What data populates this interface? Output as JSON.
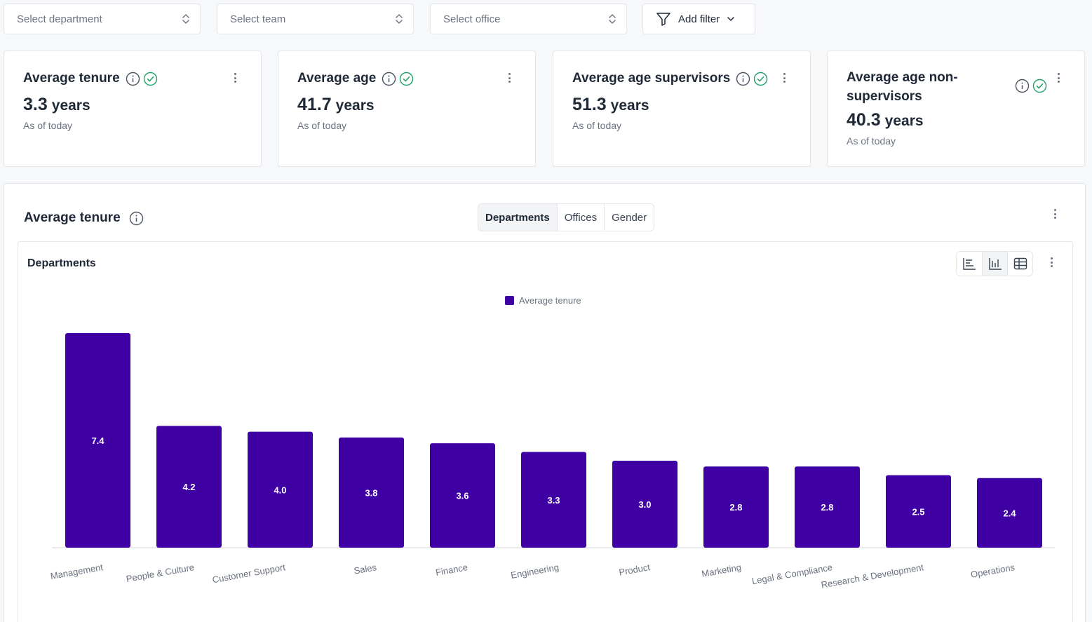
{
  "filters": {
    "department": "Select department",
    "team": "Select team",
    "office": "Select office",
    "add_filter": "Add filter"
  },
  "kpis": [
    {
      "title": "Average tenure",
      "value": "3.3",
      "unit": "years",
      "sub": "As of today"
    },
    {
      "title": "Average age",
      "value": "41.7",
      "unit": "years",
      "sub": "As of today"
    },
    {
      "title": "Average age supervisors",
      "value": "51.3",
      "unit": "years",
      "sub": "As of today"
    },
    {
      "title": "Average age non-supervisors",
      "value": "40.3",
      "unit": "years",
      "sub": "As of today"
    }
  ],
  "panel": {
    "title": "Average tenure",
    "tabs": [
      "Departments",
      "Offices",
      "Gender"
    ],
    "active_tab": "Departments",
    "chart_title": "Departments"
  },
  "colors": {
    "bar": "#3f00a4",
    "check": "#22a06b"
  },
  "chart_data": {
    "type": "bar",
    "title": "Departments",
    "legend": "Average tenure",
    "categories": [
      "Management",
      "People & Culture",
      "Customer Support",
      "Sales",
      "Finance",
      "Engineering",
      "Product",
      "Marketing",
      "Legal & Compliance",
      "Research & Development",
      "Operations"
    ],
    "values": [
      7.4,
      4.2,
      4.0,
      3.8,
      3.6,
      3.3,
      3.0,
      2.8,
      2.8,
      2.5,
      2.4
    ],
    "labels": [
      "7.4",
      "4.2",
      "4.0",
      "3.8",
      "3.6",
      "3.3",
      "3.0",
      "2.8",
      "2.8",
      "2.5",
      "2.4"
    ],
    "ylim": [
      0,
      7.4
    ],
    "xlabel": "",
    "ylabel": ""
  }
}
